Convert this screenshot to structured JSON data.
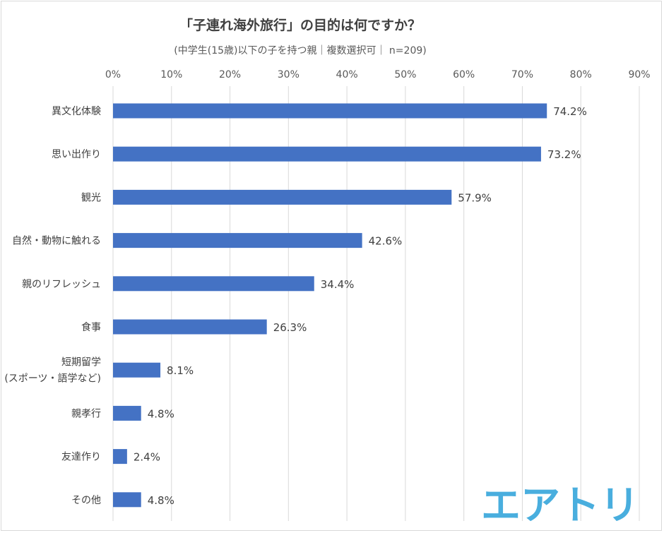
{
  "chart_data": {
    "type": "bar",
    "orientation": "horizontal",
    "title": "「子連れ海外旅行」の目的は何ですか？",
    "subtitle": "(中学生(15歳)以下の子を持つ親｜複数選択可｜ n=209)",
    "categories": [
      [
        "異文化体験"
      ],
      [
        "思い出作り"
      ],
      [
        "観光"
      ],
      [
        "自然・動物に触れる"
      ],
      [
        "親のリフレッシュ"
      ],
      [
        "食事"
      ],
      [
        "短期留学",
        "(スポーツ・語学など)"
      ],
      [
        "親孝行"
      ],
      [
        "友達作り"
      ],
      [
        "その他"
      ]
    ],
    "values": [
      74.2,
      73.2,
      57.9,
      42.6,
      34.4,
      26.3,
      8.1,
      4.8,
      2.4,
      4.8
    ],
    "value_labels": [
      "74.2%",
      "73.2%",
      "57.9%",
      "42.6%",
      "34.4%",
      "26.3%",
      "8.1%",
      "4.8%",
      "2.4%",
      "4.8%"
    ],
    "xlim": [
      0,
      90
    ],
    "x_ticks": [
      "0%",
      "10%",
      "20%",
      "30%",
      "40%",
      "50%",
      "60%",
      "70%",
      "80%",
      "90%"
    ],
    "x_tick_values": [
      0,
      10,
      20,
      30,
      40,
      50,
      60,
      70,
      80,
      90
    ],
    "xlabel": "",
    "ylabel": "",
    "grid": true,
    "x_axis_position": "top",
    "bar_color": "#4472c4"
  },
  "logo": {
    "text": "エアトリ",
    "color": "#49aede"
  }
}
